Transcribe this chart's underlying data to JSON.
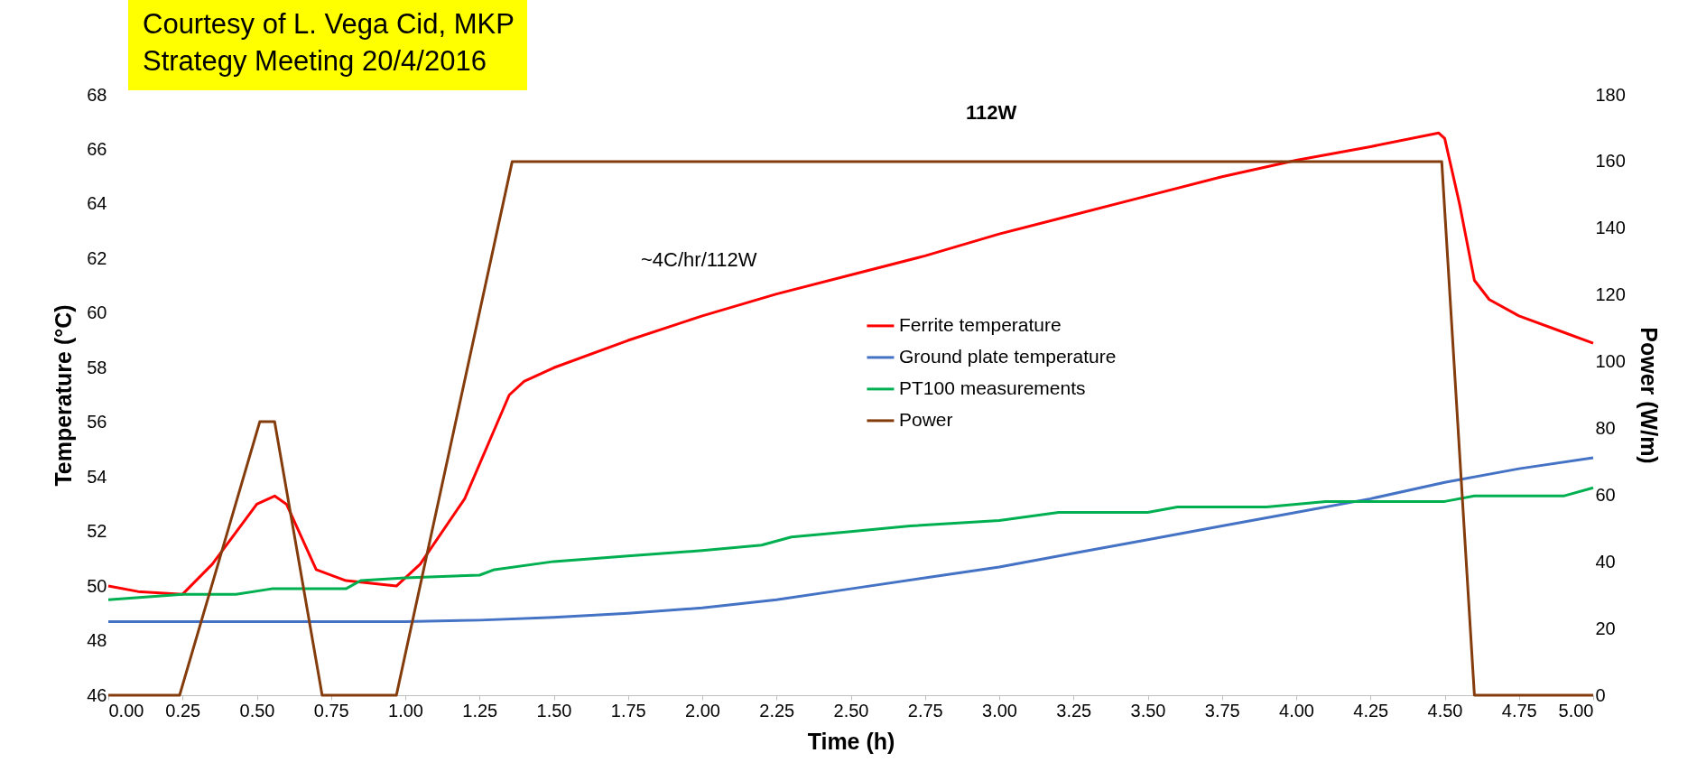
{
  "chart_data": {
    "type": "line",
    "xlabel": "Time (h)",
    "ylabel": "Temperature (°C)",
    "y2label": "Power (W/m)",
    "xlim": [
      0,
      5
    ],
    "xticks": [
      {
        "value": 0,
        "label": "0.00"
      },
      {
        "value": 0.25,
        "label": "0.25"
      },
      {
        "value": 0.5,
        "label": "0.50"
      },
      {
        "value": 0.75,
        "label": "0.75"
      },
      {
        "value": 1,
        "label": "1.00"
      },
      {
        "value": 1.25,
        "label": "1.25"
      },
      {
        "value": 1.5,
        "label": "1.50"
      },
      {
        "value": 1.75,
        "label": "1.75"
      },
      {
        "value": 2,
        "label": "2.00"
      },
      {
        "value": 2.25,
        "label": "2.25"
      },
      {
        "value": 2.5,
        "label": "2.50"
      },
      {
        "value": 2.75,
        "label": "2.75"
      },
      {
        "value": 3,
        "label": "3.00"
      },
      {
        "value": 3.25,
        "label": "3.25"
      },
      {
        "value": 3.5,
        "label": "3.50"
      },
      {
        "value": 3.75,
        "label": "3.75"
      },
      {
        "value": 4,
        "label": "4.00"
      },
      {
        "value": 4.25,
        "label": "4.25"
      },
      {
        "value": 4.5,
        "label": "4.50"
      },
      {
        "value": 4.75,
        "label": "4.75"
      },
      {
        "value": 5,
        "label": "5.00"
      }
    ],
    "ylim": [
      46,
      68
    ],
    "yticks": [
      46,
      48,
      50,
      52,
      54,
      56,
      58,
      60,
      62,
      64,
      66,
      68
    ],
    "y2lim": [
      0,
      180
    ],
    "y2ticks": [
      0,
      20,
      40,
      60,
      80,
      100,
      120,
      140,
      160,
      180
    ],
    "legend": "center",
    "grid": false,
    "line_style": "solid",
    "marker": "none",
    "series": [
      {
        "name": "Ferrite temperature",
        "color": "#ff0000",
        "x": [
          0,
          0.1,
          0.25,
          0.35,
          0.5,
          0.56,
          0.6,
          0.7,
          0.8,
          0.97,
          1.05,
          1.2,
          1.35,
          1.4,
          1.5,
          1.75,
          2,
          2.25,
          2.5,
          2.75,
          3,
          3.25,
          3.5,
          3.75,
          4,
          4.25,
          4.48,
          4.5,
          4.55,
          4.6,
          4.65,
          4.75,
          4.9,
          5
        ],
        "values": [
          50,
          49.8,
          49.7,
          50.8,
          53,
          53.3,
          53,
          50.6,
          50.2,
          50,
          50.8,
          53.2,
          57,
          57.5,
          58,
          59,
          59.9,
          60.7,
          61.4,
          62.1,
          62.9,
          63.6,
          64.3,
          65,
          65.6,
          66.1,
          66.6,
          66.4,
          64,
          61.2,
          60.5,
          59.9,
          59.3,
          58.9
        ]
      },
      {
        "name": "Ground plate temperature",
        "color": "#4472c4",
        "x": [
          0,
          1,
          1.25,
          1.5,
          1.75,
          2,
          2.25,
          2.5,
          2.75,
          3,
          3.25,
          3.5,
          3.75,
          4,
          4.25,
          4.5,
          4.75,
          5
        ],
        "values": [
          48.7,
          48.7,
          48.75,
          48.85,
          49,
          49.2,
          49.5,
          49.9,
          50.3,
          50.7,
          51.2,
          51.7,
          52.2,
          52.7,
          53.2,
          53.8,
          54.3,
          54.7
        ]
      },
      {
        "name": "PT100 measurements",
        "color": "#00b050",
        "x": [
          0,
          0.25,
          0.43,
          0.55,
          0.8,
          0.85,
          1,
          1.25,
          1.3,
          1.5,
          1.75,
          2,
          2.2,
          2.3,
          2.5,
          2.7,
          3,
          3.2,
          3.5,
          3.6,
          3.9,
          4.1,
          4.5,
          4.6,
          4.9,
          5
        ],
        "values": [
          49.5,
          49.7,
          49.7,
          49.9,
          49.9,
          50.2,
          50.3,
          50.4,
          50.6,
          50.9,
          51.1,
          51.3,
          51.5,
          51.8,
          52,
          52.2,
          52.4,
          52.7,
          52.7,
          52.9,
          52.9,
          53.1,
          53.1,
          53.3,
          53.3,
          53.6
        ]
      },
      {
        "name": "Power",
        "color": "#843c0c",
        "axis": "y2",
        "x": [
          0,
          0.24,
          0.51,
          0.56,
          0.72,
          0.97,
          1.36,
          4.49,
          4.6,
          5
        ],
        "values": [
          0,
          0,
          82,
          82,
          0,
          0,
          160,
          160,
          0,
          0
        ]
      }
    ],
    "annotations": [
      "112W",
      "~4C/hr/112W",
      "Courtesy of L. Vega Cid, MKP\nStrategy Meeting 20/4/2016"
    ]
  }
}
